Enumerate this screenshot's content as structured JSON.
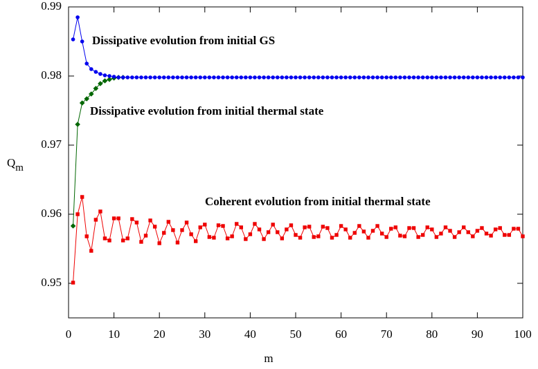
{
  "chart_data": {
    "type": "line",
    "xlabel": "m",
    "ylabel": {
      "text": "Q",
      "subscript": "m"
    },
    "xlim": [
      0,
      100
    ],
    "xticks": [
      0,
      10,
      20,
      30,
      40,
      50,
      60,
      70,
      80,
      90,
      100
    ],
    "ylim": [
      0.945,
      0.99
    ],
    "yticks": [
      0.95,
      0.96,
      0.97,
      0.98,
      0.99
    ],
    "x": [
      1,
      2,
      3,
      4,
      5,
      6,
      7,
      8,
      9,
      10,
      11,
      12,
      13,
      14,
      15,
      16,
      17,
      18,
      19,
      20,
      21,
      22,
      23,
      24,
      25,
      26,
      27,
      28,
      29,
      30,
      31,
      32,
      33,
      34,
      35,
      36,
      37,
      38,
      39,
      40,
      41,
      42,
      43,
      44,
      45,
      46,
      47,
      48,
      49,
      50,
      51,
      52,
      53,
      54,
      55,
      56,
      57,
      58,
      59,
      60,
      61,
      62,
      63,
      64,
      65,
      66,
      67,
      68,
      69,
      70,
      71,
      72,
      73,
      74,
      75,
      76,
      77,
      78,
      79,
      80,
      81,
      82,
      83,
      84,
      85,
      86,
      87,
      88,
      89,
      90,
      91,
      92,
      93,
      94,
      95,
      96,
      97,
      98,
      99,
      100
    ],
    "series": [
      {
        "color": "#ee0000",
        "marker": "square",
        "values": [
          0.9501,
          0.96,
          0.9625,
          0.9568,
          0.9547,
          0.9592,
          0.9604,
          0.9565,
          0.9562,
          0.9594,
          0.9594,
          0.9562,
          0.9565,
          0.9593,
          0.9588,
          0.956,
          0.9569,
          0.9591,
          0.9582,
          0.9558,
          0.9573,
          0.9589,
          0.9577,
          0.9559,
          0.9577,
          0.9588,
          0.9571,
          0.9561,
          0.9581,
          0.9585,
          0.9567,
          0.9566,
          0.9584,
          0.9583,
          0.9565,
          0.9568,
          0.9586,
          0.9581,
          0.9564,
          0.9571,
          0.9586,
          0.9578,
          0.9564,
          0.9574,
          0.9585,
          0.9574,
          0.9565,
          0.9578,
          0.9584,
          0.957,
          0.9566,
          0.9581,
          0.9582,
          0.9567,
          0.9568,
          0.9582,
          0.958,
          0.9566,
          0.957,
          0.9583,
          0.9578,
          0.9566,
          0.9573,
          0.9583,
          0.9575,
          0.9566,
          0.9576,
          0.9583,
          0.9572,
          0.9567,
          0.9579,
          0.9581,
          0.9569,
          0.9568,
          0.958,
          0.958,
          0.9567,
          0.957,
          0.9581,
          0.9578,
          0.9567,
          0.9572,
          0.9581,
          0.9576,
          0.9567,
          0.9574,
          0.9581,
          0.9574,
          0.9568,
          0.9576,
          0.958,
          0.9572,
          0.9569,
          0.9578,
          0.958,
          0.957,
          0.957,
          0.9579,
          0.9579,
          0.9568
        ]
      },
      {
        "color": "#006600",
        "marker": "diamond",
        "values": [
          0.9583,
          0.973,
          0.9761,
          0.9767,
          0.9774,
          0.9782,
          0.9789,
          0.9793,
          0.9795,
          0.9797,
          0.9798,
          0.9798,
          null,
          null,
          null,
          null,
          null,
          null,
          null,
          null,
          null,
          null,
          null,
          null,
          null,
          null,
          null,
          null,
          null,
          null,
          null,
          null,
          null,
          null,
          null,
          null,
          null,
          null,
          null,
          null,
          null,
          null,
          null,
          null,
          null,
          null,
          null,
          null,
          null,
          null,
          null,
          null,
          null,
          null,
          null,
          null,
          null,
          null,
          null,
          null,
          null,
          null,
          null,
          null,
          null,
          null,
          null,
          null,
          null,
          null,
          null,
          null,
          null,
          null,
          null,
          null,
          null,
          null,
          null,
          null,
          null,
          null,
          null,
          null,
          null,
          null,
          null,
          null,
          null,
          null,
          null,
          null,
          null,
          null,
          null,
          null,
          null,
          null,
          null,
          null
        ]
      },
      {
        "color": "#0000ee",
        "marker": "circle",
        "values": [
          0.9853,
          0.9885,
          0.985,
          0.9818,
          0.981,
          0.9806,
          0.9803,
          0.9801,
          0.98,
          0.9799,
          0.9798,
          0.9798,
          0.9798,
          0.9798,
          0.9798,
          0.9798,
          0.9798,
          0.9798,
          0.9798,
          0.9798,
          0.9798,
          0.9798,
          0.9798,
          0.9798,
          0.9798,
          0.9798,
          0.9798,
          0.9798,
          0.9798,
          0.9798,
          0.9798,
          0.9798,
          0.9798,
          0.9798,
          0.9798,
          0.9798,
          0.9798,
          0.9798,
          0.9798,
          0.9798,
          0.9798,
          0.9798,
          0.9798,
          0.9798,
          0.9798,
          0.9798,
          0.9798,
          0.9798,
          0.9798,
          0.9798,
          0.9798,
          0.9798,
          0.9798,
          0.9798,
          0.9798,
          0.9798,
          0.9798,
          0.9798,
          0.9798,
          0.9798,
          0.9798,
          0.9798,
          0.9798,
          0.9798,
          0.9798,
          0.9798,
          0.9798,
          0.9798,
          0.9798,
          0.9798,
          0.9798,
          0.9798,
          0.9798,
          0.9798,
          0.9798,
          0.9798,
          0.9798,
          0.9798,
          0.9798,
          0.9798,
          0.9798,
          0.9798,
          0.9798,
          0.9798,
          0.9798,
          0.9798,
          0.9798,
          0.9798,
          0.9798,
          0.9798,
          0.9798,
          0.9798,
          0.9798,
          0.9798,
          0.9798,
          0.9798,
          0.9798,
          0.9798,
          0.9798,
          0.9798
        ]
      }
    ],
    "annotations": [
      {
        "text": "Dissipative evolution from initial GS",
        "color": "#0000ee"
      },
      {
        "text": "Dissipative evolution from initial thermal state",
        "color": "#006600"
      },
      {
        "text": "Coherent evolution from initial thermal state",
        "color": "#ee0000"
      }
    ]
  }
}
